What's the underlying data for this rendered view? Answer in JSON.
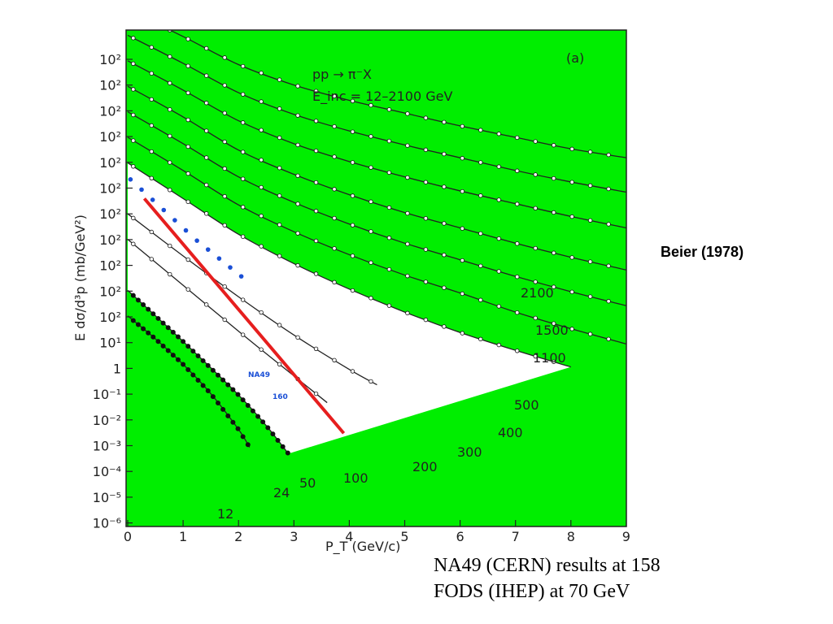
{
  "side_label": "Beier (1978)",
  "notes": [
    "NA49 (CERN) results at 158",
    "FODS (IHEP) at 70 GeV"
  ],
  "colors": {
    "background": "#00ee00",
    "na49_points": "#1a4fd6",
    "red_line": "#e61e1e",
    "curves": "#222222"
  },
  "chart_data": {
    "type": "line",
    "panel_label": "(a)",
    "reaction": "pp → π⁻X",
    "energy_range": "E_inc = 12–2100 GeV",
    "xlabel": "P_T (GeV/c)",
    "ylabel": "E dσ/d³p (mb/GeV²)",
    "xlim": [
      0,
      9
    ],
    "x_ticks": [
      "0",
      "1",
      "2",
      "3",
      "4",
      "5",
      "6",
      "7",
      "8",
      "9"
    ],
    "y_tick_labels": [
      "10²",
      "10²",
      "10²",
      "10²",
      "10²",
      "10²",
      "10²",
      "10²",
      "10²",
      "10²",
      "10²",
      "10¹",
      "1",
      "10⁻¹",
      "10⁻²",
      "10⁻³",
      "10⁻⁴",
      "10⁻⁵",
      "10⁻⁶"
    ],
    "series": [
      {
        "name": "2100",
        "offset": 12,
        "y0": 2.0,
        "x": [
          0,
          1,
          2,
          3,
          4,
          5,
          6,
          7,
          8,
          9
        ],
        "y": [
          2.0,
          0.95,
          -0.15,
          -0.95,
          -1.55,
          -2.05,
          -2.55,
          -3.0,
          -3.45,
          -3.8
        ]
      },
      {
        "name": "1500",
        "offset": 11,
        "y0": 2.0,
        "x": [
          0,
          1,
          2,
          3,
          4,
          5,
          6,
          7,
          8,
          9
        ],
        "y": [
          2.0,
          0.9,
          -0.25,
          -1.1,
          -1.75,
          -2.3,
          -2.8,
          -3.3,
          -3.75,
          -4.15
        ]
      },
      {
        "name": "1100",
        "offset": 10,
        "y0": 2.0,
        "x": [
          0,
          1,
          2,
          3,
          4,
          5,
          6,
          7,
          8,
          9
        ],
        "y": [
          2.0,
          0.85,
          -0.35,
          -1.25,
          -1.95,
          -2.55,
          -3.1,
          -3.6,
          -4.1,
          -4.55
        ]
      },
      {
        "name": "500",
        "offset": 9,
        "y0": 2.0,
        "x": [
          0,
          1,
          2,
          3,
          4,
          5,
          6,
          7,
          8,
          9
        ],
        "y": [
          2.0,
          0.8,
          -0.5,
          -1.45,
          -2.25,
          -2.95,
          -3.55,
          -4.15,
          -4.7,
          -5.2
        ]
      },
      {
        "name": "400",
        "offset": 8,
        "y0": 2.0,
        "x": [
          0,
          1,
          2,
          3,
          4,
          5,
          6,
          7,
          8,
          9
        ],
        "y": [
          2.0,
          0.75,
          -0.55,
          -1.55,
          -2.4,
          -3.15,
          -3.8,
          -4.45,
          -5.05,
          -5.6
        ]
      },
      {
        "name": "300",
        "offset": 7,
        "y0": 2.0,
        "x": [
          0,
          1,
          2,
          3,
          4,
          5,
          6,
          7,
          8,
          9
        ],
        "y": [
          2.0,
          0.7,
          -0.65,
          -1.7,
          -2.6,
          -3.4,
          -4.1,
          -4.85,
          -5.5,
          -6.1
        ]
      },
      {
        "name": "200",
        "offset": 6,
        "y0": 2.0,
        "x": [
          0,
          1,
          2,
          3,
          4,
          5,
          6,
          7,
          8
        ],
        "y": [
          2.0,
          0.6,
          -0.8,
          -1.95,
          -2.95,
          -3.85,
          -4.65,
          -5.35,
          -6.0
        ]
      },
      {
        "name": "100",
        "offset": 4,
        "y0": 2.0,
        "x": [
          0,
          1,
          2,
          3,
          4,
          4.5
        ],
        "y": [
          2.0,
          0.35,
          -1.25,
          -2.75,
          -4.1,
          -4.7
        ]
      },
      {
        "name": "50",
        "offset": 3,
        "y0": 2.0,
        "x": [
          0,
          1,
          2,
          3,
          3.6
        ],
        "y": [
          2.0,
          0.2,
          -1.6,
          -3.35,
          -4.4
        ]
      },
      {
        "name": "24",
        "offset": 1,
        "y0": 2.0,
        "x": [
          0,
          1,
          2,
          2.5,
          2.9
        ],
        "y": [
          2.0,
          0.0,
          -2.1,
          -3.3,
          -4.4
        ]
      },
      {
        "name": "12",
        "offset": 0,
        "y0": 2.0,
        "x": [
          0,
          0.5,
          1,
          1.5,
          2.0,
          2.2
        ],
        "y": [
          2.0,
          1.1,
          0.1,
          -1.05,
          -2.45,
          -3.15
        ]
      }
    ],
    "na49_160_points": {
      "label_top": "NA49",
      "label_bottom": "160",
      "x": [
        0.05,
        0.25,
        0.45,
        0.65,
        0.85,
        1.05,
        1.25,
        1.45,
        1.65,
        1.85,
        2.05
      ],
      "y": [
        7.35,
        6.95,
        6.55,
        6.15,
        5.75,
        5.35,
        4.95,
        4.6,
        4.25,
        3.9,
        3.55
      ]
    },
    "red_line": {
      "x": [
        0.3,
        3.9
      ],
      "y": [
        6.6,
        -2.6
      ]
    }
  }
}
